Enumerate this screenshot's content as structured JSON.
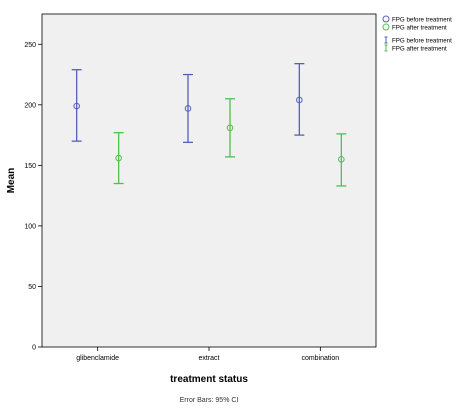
{
  "chart_data": {
    "type": "errorbar",
    "categories": [
      "glibenclamide",
      "extract",
      "combination"
    ],
    "series": [
      {
        "name": "FPG before treatment",
        "color": "#5560b8",
        "means": [
          199,
          197,
          204
        ],
        "lower": [
          170,
          169,
          175
        ],
        "upper": [
          229,
          225,
          234
        ]
      },
      {
        "name": "FPG after treatment",
        "color": "#4fc04f",
        "means": [
          156,
          181,
          155
        ],
        "lower": [
          135,
          157,
          133
        ],
        "upper": [
          177,
          205,
          176
        ]
      }
    ],
    "legend": {
      "position": "top-right",
      "marker_labels": [
        "FPG before treatment",
        "FPG after treatment"
      ],
      "bar_labels": [
        "FPG before treatment",
        "FPG after treatment"
      ]
    },
    "xlabel": "treatment status",
    "ylabel": "Mean",
    "ylim": [
      0,
      275
    ],
    "yticks": [
      0,
      50,
      100,
      150,
      200,
      250
    ],
    "footnote": "Error Bars: 95% CI",
    "colors": {
      "plot_background": "#f0f0f0",
      "axis": "#000000"
    }
  }
}
